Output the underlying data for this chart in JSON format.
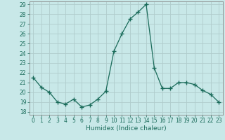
{
  "x": [
    0,
    1,
    2,
    3,
    4,
    5,
    6,
    7,
    8,
    9,
    10,
    11,
    12,
    13,
    14,
    15,
    16,
    17,
    18,
    19,
    20,
    21,
    22,
    23
  ],
  "y": [
    21.5,
    20.5,
    20.0,
    19.0,
    18.8,
    19.3,
    18.5,
    18.7,
    19.3,
    20.1,
    24.2,
    26.0,
    27.5,
    28.2,
    29.0,
    22.5,
    20.4,
    20.4,
    21.0,
    21.0,
    20.8,
    20.2,
    19.8,
    19.0
  ],
  "line_color": "#1a6b5a",
  "marker": "+",
  "marker_size": 4,
  "bg_color": "#c8e8e8",
  "grid_color": "#b0cccc",
  "xlabel": "Humidex (Indice chaleur)",
  "ylim_min": 18,
  "ylim_max": 29,
  "xlim_min": -0.5,
  "xlim_max": 23.5,
  "yticks": [
    18,
    19,
    20,
    21,
    22,
    23,
    24,
    25,
    26,
    27,
    28,
    29
  ],
  "xticks": [
    0,
    1,
    2,
    3,
    4,
    5,
    6,
    7,
    8,
    9,
    10,
    11,
    12,
    13,
    14,
    15,
    16,
    17,
    18,
    19,
    20,
    21,
    22,
    23
  ],
  "tick_fontsize": 5.5,
  "xlabel_fontsize": 6.5,
  "tick_color": "#1a6b5a",
  "spine_color": "#888888"
}
